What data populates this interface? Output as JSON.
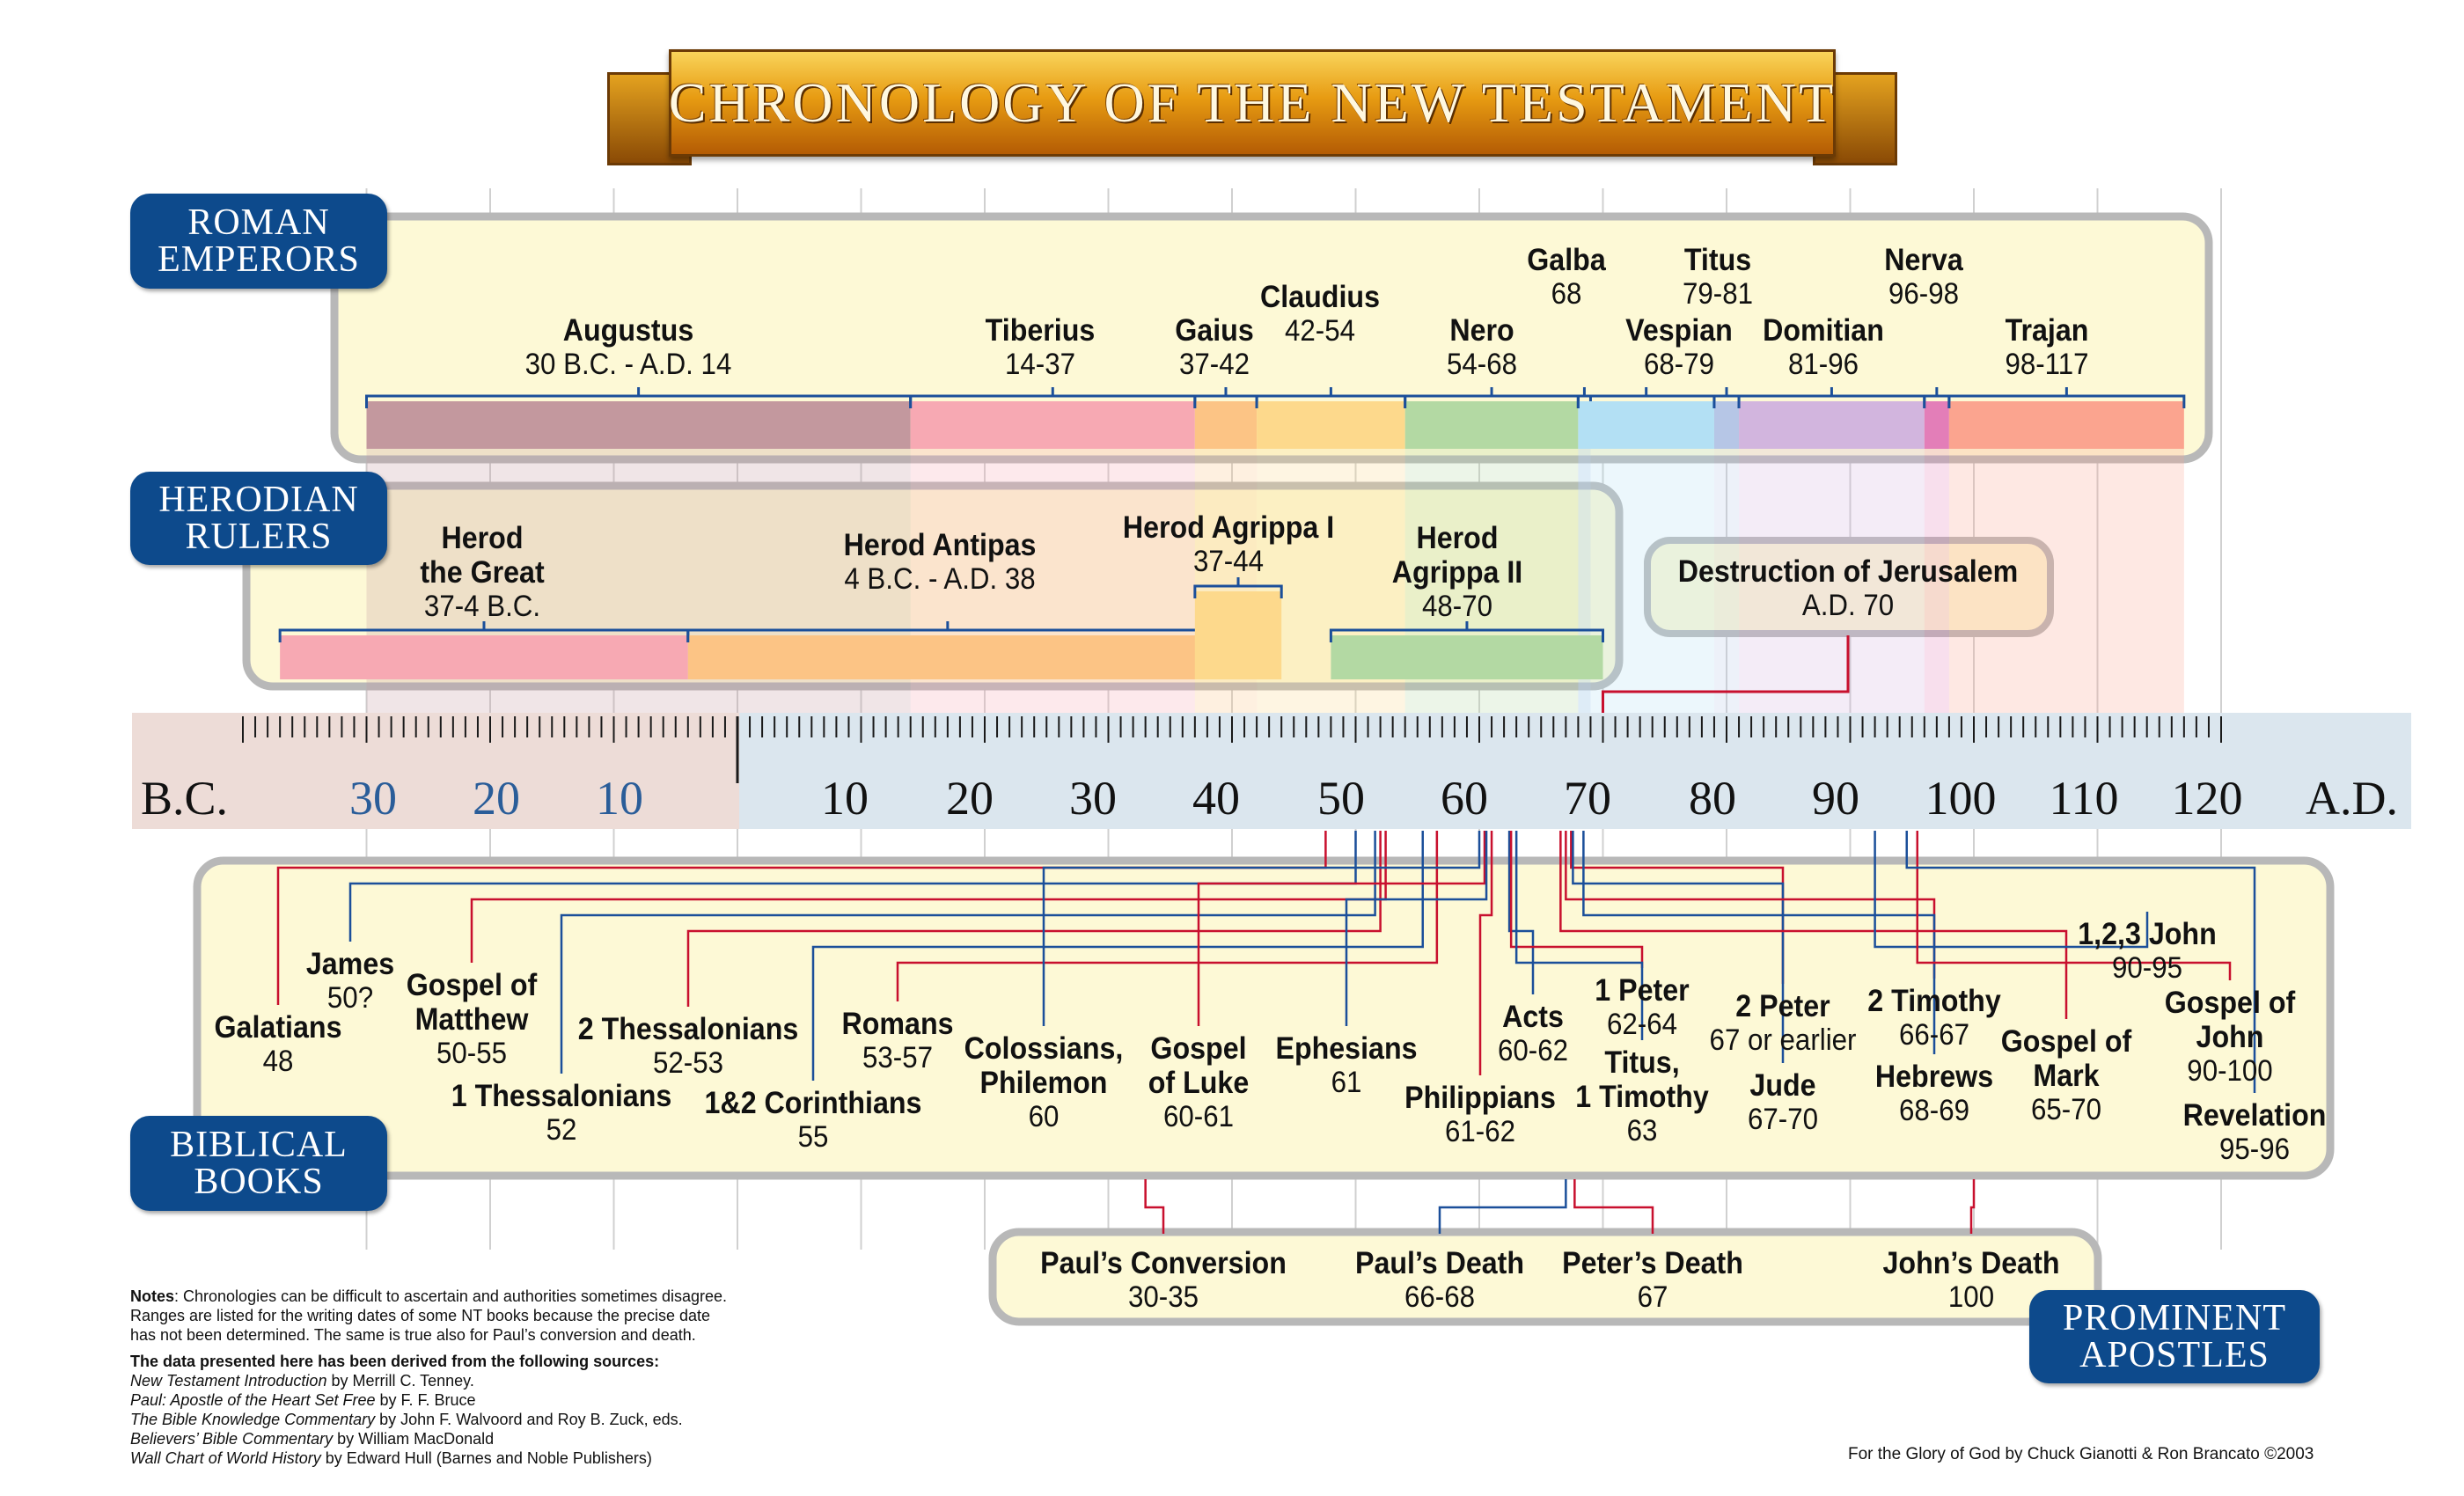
{
  "title": "CHRONOLOGY OF THE NEW TESTAMENT",
  "sections": {
    "roman": [
      "ROMAN",
      "EMPERORS"
    ],
    "herodian": [
      "HERODIAN",
      "RULERS"
    ],
    "biblical": [
      "BIBLICAL",
      "BOOKS"
    ],
    "apostles": [
      "PROMINENT",
      "APOSTLES"
    ]
  },
  "scale": {
    "bc_label": "B.C.",
    "ad_label": "A.D.",
    "bc_ticks": [
      "30",
      "20",
      "10"
    ],
    "ad_ticks": [
      "10",
      "20",
      "30",
      "40",
      "50",
      "60",
      "70",
      "80",
      "90",
      "100",
      "110",
      "120"
    ]
  },
  "emperors": [
    {
      "name": "Augustus",
      "dates": "30 B.C. - A.D. 14",
      "start": -30,
      "end": 14,
      "color": "#c3989e"
    },
    {
      "name": "Tiberius",
      "dates": "14-37",
      "start": 14,
      "end": 37,
      "color": "#f7a9b3"
    },
    {
      "name": "Gaius",
      "dates": "37-42",
      "start": 37,
      "end": 42,
      "color": "#fcc485"
    },
    {
      "name": "Claudius",
      "dates": "42-54",
      "start": 42,
      "end": 54,
      "color": "#fdd98c"
    },
    {
      "name": "Nero",
      "dates": "54-68",
      "start": 54,
      "end": 68,
      "color": "#b3d9a3"
    },
    {
      "name": "Galba",
      "dates": "68",
      "start": 68,
      "end": 69,
      "color": "#b6c6e6"
    },
    {
      "name": "Vespian",
      "dates": "68-79",
      "start": 68,
      "end": 79,
      "color": "#b3e0f4"
    },
    {
      "name": "Titus",
      "dates": "79-81",
      "start": 79,
      "end": 81,
      "color": "#b6c6e6"
    },
    {
      "name": "Domitian",
      "dates": "81-96",
      "start": 81,
      "end": 96,
      "color": "#d2b5de"
    },
    {
      "name": "Nerva",
      "dates": "96-98",
      "start": 96,
      "end": 98,
      "color": "#e37eb8"
    },
    {
      "name": "Trajan",
      "dates": "98-117",
      "start": 98,
      "end": 117,
      "color": "#fba48f"
    }
  ],
  "herods": [
    {
      "name": [
        "Herod",
        "the Great"
      ],
      "dates": "37-4 B.C.",
      "start": -37,
      "end": -4,
      "color": "#f7a9b3"
    },
    {
      "name": [
        "Herod Antipas"
      ],
      "dates": "4 B.C. - A.D. 38",
      "start": -4,
      "end": 38,
      "color": "#fcc485"
    },
    {
      "name": [
        "Herod Agrippa I"
      ],
      "dates": "37-44",
      "start": 37,
      "end": 44,
      "color": "#fdd98c"
    },
    {
      "name": [
        "Herod",
        "Agrippa II"
      ],
      "dates": "48-70",
      "start": 48,
      "end": 70,
      "color": "#b3d9a3"
    }
  ],
  "destruction": {
    "name": "Destruction of Jerusalem",
    "date": "A.D. 70",
    "year": 70
  },
  "books": [
    {
      "name": [
        "Galatians"
      ],
      "dates": "48",
      "year": 48
    },
    {
      "name": [
        "James"
      ],
      "dates": "50?",
      "year": 50
    },
    {
      "name": [
        "Gospel of",
        "Matthew"
      ],
      "dates": "50-55",
      "year": 52
    },
    {
      "name": [
        "1 Thessalonians"
      ],
      "dates": "52",
      "year": 52
    },
    {
      "name": [
        "2 Thessalonians"
      ],
      "dates": "52-53",
      "year": 52
    },
    {
      "name": [
        "1&2 Corinthians"
      ],
      "dates": "55",
      "year": 55
    },
    {
      "name": [
        "Romans"
      ],
      "dates": "53-57",
      "year": 57
    },
    {
      "name": [
        "Colossians,",
        "Philemon"
      ],
      "dates": "60",
      "year": 60
    },
    {
      "name": [
        "Gospel",
        "of Luke"
      ],
      "dates": "60-61",
      "year": 60
    },
    {
      "name": [
        "Ephesians"
      ],
      "dates": "61",
      "year": 61
    },
    {
      "name": [
        "Philippians"
      ],
      "dates": "61-62",
      "year": 61
    },
    {
      "name": [
        "Acts"
      ],
      "dates": "60-62",
      "year": 62
    },
    {
      "name": [
        "1 Peter"
      ],
      "dates": "62-64",
      "year": 63
    },
    {
      "name": [
        "Titus,",
        "1 Timothy"
      ],
      "dates": "63",
      "year": 63
    },
    {
      "name": [
        "2 Peter"
      ],
      "dates": "67 or earlier",
      "year": 67
    },
    {
      "name": [
        "Jude"
      ],
      "dates": "67-70",
      "year": 68
    },
    {
      "name": [
        "2 Timothy"
      ],
      "dates": "66-67",
      "year": 67
    },
    {
      "name": [
        "Hebrews"
      ],
      "dates": "68-69",
      "year": 68
    },
    {
      "name": [
        "Gospel of",
        "Mark"
      ],
      "dates": "65-70",
      "year": 67
    },
    {
      "name": [
        "1,2,3 John"
      ],
      "dates": "90-95",
      "year": 92
    },
    {
      "name": [
        "Gospel of",
        "John"
      ],
      "dates": "90-100",
      "year": 95
    },
    {
      "name": [
        "Revelation"
      ],
      "dates": "95-96",
      "year": 95
    }
  ],
  "apostles": [
    {
      "name": "Paul’s Conversion",
      "dates": "30-35",
      "year": 33
    },
    {
      "name": "Paul’s Death",
      "dates": "66-68",
      "year": 67
    },
    {
      "name": "Peter’s Death",
      "dates": "67",
      "year": 67
    },
    {
      "name": "John’s Death",
      "dates": "100",
      "year": 100
    }
  ],
  "notes": {
    "p1_label": "Notes",
    "p1_lines": [
      ": Chronologies can be difficult to ascertain and authorities sometimes disagree.",
      "Ranges are listed for the writing dates of some NT books because the precise date",
      "has not been determined. The same is true also for Paul’s conversion and death."
    ],
    "sources_heading": "The data presented here has been derived from the following sources:",
    "sources": [
      {
        "title": "New Testament Introduction",
        "author": " by Merrill C. Tenney."
      },
      {
        "title": "Paul: Apostle of the Heart Set Free",
        "author": " by F. F. Bruce"
      },
      {
        "title": "The Bible Knowledge Commentary",
        "author": " by John F. Walvoord and Roy B. Zuck, eds."
      },
      {
        "title": "Believers’ Bible Commentary",
        "author": " by William MacDonald"
      },
      {
        "title": "Wall Chart of World History",
        "author": " by Edward Hull (Barnes and Noble Publishers)"
      }
    ]
  },
  "credit": "For the Glory of God by Chuck Gianotti & Ron Brancato ©2003",
  "colors": {
    "tab": "#0d4a8c",
    "panel": "#fdf9d6",
    "panel_border": "#b3b3b3",
    "bracket": "#1b4f9a",
    "red_line": "#c8102e",
    "blue_line": "#1b4f9a"
  }
}
